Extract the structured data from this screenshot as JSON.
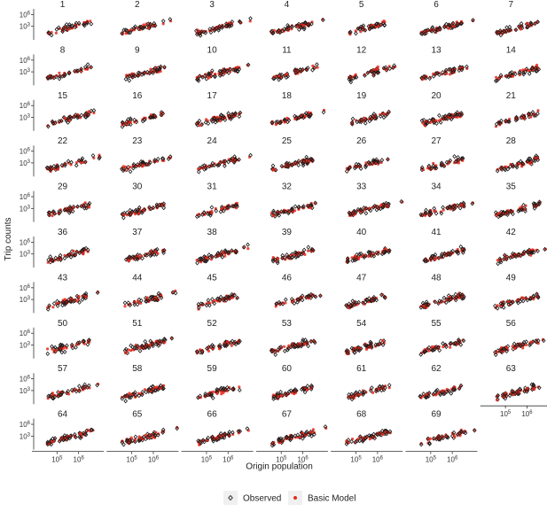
{
  "chart_data": {
    "type": "scatter",
    "facet_grid": "small multiples, 7 columns",
    "xlabel": "Origin population",
    "ylabel": "Trip counts",
    "x_scale": "log",
    "y_scale": "log",
    "xlim": [
      10000,
      10000000
    ],
    "ylim": [
      1,
      10000000
    ],
    "x_ticks": [
      100000,
      1000000
    ],
    "x_tick_labels": [
      "10^5",
      "10^6"
    ],
    "y_ticks": [
      1000,
      1000000
    ],
    "y_tick_labels": [
      "10^3",
      "10^6"
    ],
    "panels": [
      "1",
      "2",
      "3",
      "4",
      "5",
      "6",
      "7",
      "8",
      "9",
      "10",
      "11",
      "12",
      "13",
      "14",
      "15",
      "16",
      "17",
      "18",
      "19",
      "20",
      "21",
      "22",
      "23",
      "24",
      "25",
      "26",
      "27",
      "28",
      "29",
      "30",
      "31",
      "32",
      "33",
      "34",
      "35",
      "36",
      "37",
      "38",
      "39",
      "40",
      "41",
      "42",
      "43",
      "44",
      "45",
      "46",
      "47",
      "48",
      "49",
      "50",
      "51",
      "52",
      "53",
      "54",
      "55",
      "56",
      "57",
      "58",
      "59",
      "60",
      "61",
      "62",
      "63",
      "64",
      "65",
      "66",
      "67",
      "68",
      "69"
    ],
    "series": [
      {
        "name": "Observed",
        "color": "#1a1a1a",
        "marker": "diamond"
      },
      {
        "name": "Basic Model",
        "color": "#e8291c",
        "marker": "circle"
      }
    ],
    "legend": "bottom-center",
    "grid": false
  }
}
